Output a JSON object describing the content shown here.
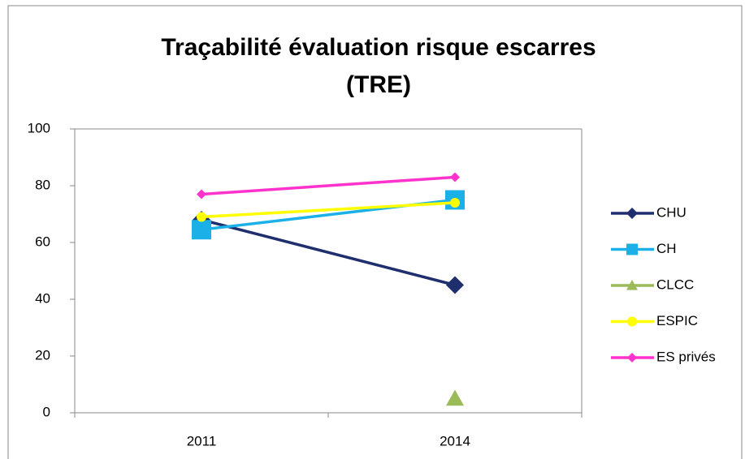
{
  "chart_data": {
    "type": "line",
    "title": [
      "Traçabilité évaluation risque escarres",
      "(TRE)"
    ],
    "categories": [
      "2011",
      "2014"
    ],
    "series": [
      {
        "name": "CHU",
        "color": "#1f2f6e",
        "marker": "diamond",
        "values": [
          68,
          45
        ]
      },
      {
        "name": "CH",
        "color": "#1cb0e8",
        "marker": "square",
        "values": [
          64.5,
          75
        ]
      },
      {
        "name": "CLCC",
        "color": "#9bbb59",
        "marker": "triangle",
        "values": [
          null,
          5
        ]
      },
      {
        "name": "ESPIC",
        "color": "#ffff00",
        "marker": "circle",
        "values": [
          69,
          74
        ]
      },
      {
        "name": "ES privés",
        "color": "#ff33cc",
        "marker": "diamond",
        "values": [
          77,
          83
        ]
      }
    ],
    "ylim": [
      0,
      100
    ],
    "yticks": [
      0,
      20,
      40,
      60,
      80,
      100
    ],
    "grid": false,
    "legend": "right"
  }
}
